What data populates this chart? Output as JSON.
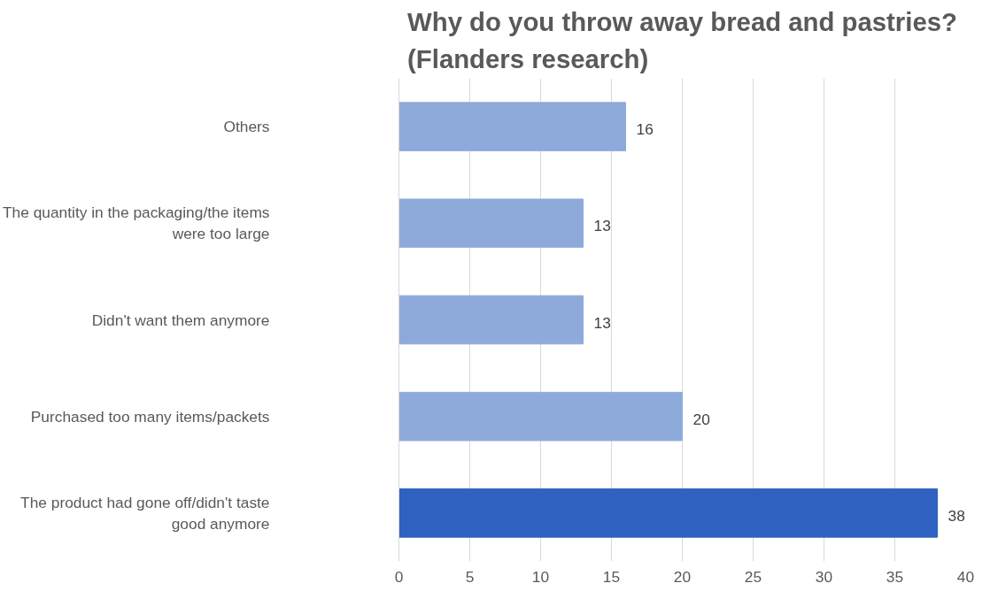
{
  "chart_data": {
    "type": "bar",
    "orientation": "horizontal",
    "title": "Why do you throw away bread and pastries? (Flanders research)",
    "categories": [
      "Others",
      "The quantity in the packaging/the items were too large",
      "Didn't want them anymore",
      "Purchased too many items/packets",
      "The product had gone off/didn't taste good anymore"
    ],
    "values": [
      16,
      13,
      13,
      20,
      38
    ],
    "colors": [
      "#8eaadb",
      "#8eaadb",
      "#8eaadb",
      "#8eaadb",
      "#2f62c0"
    ],
    "xlim": [
      0,
      40
    ],
    "xticks": [
      0,
      5,
      10,
      15,
      20,
      25,
      30,
      35,
      40
    ],
    "grid": "x",
    "data_labels": true
  }
}
